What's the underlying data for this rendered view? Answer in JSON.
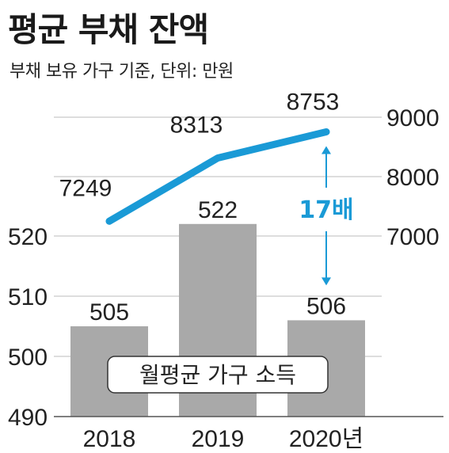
{
  "title": "평균 부채 잔액",
  "subtitle": "부채 보유 가구 기준, 단위: 만원",
  "colors": {
    "bar": "#a9a9a9",
    "line": "#1a9ad6",
    "grid": "#bbbbbb",
    "text": "#222222"
  },
  "chart_data": {
    "type": "bar+line",
    "categories": [
      "2018",
      "2019",
      "2020년"
    ],
    "bars": {
      "name": "월평균 가구 소득",
      "values": [
        505,
        522,
        506
      ],
      "axis": "left",
      "ylim": [
        490,
        525
      ],
      "ticks": [
        490,
        500,
        510,
        520
      ]
    },
    "line": {
      "name": "",
      "values": [
        7249,
        8313,
        8753
      ],
      "axis": "right",
      "ylim": [
        7000,
        9000
      ],
      "ticks": [
        7000,
        8000,
        9000
      ]
    },
    "annotation": "17배",
    "legend_label": "월평균 가구 소득"
  }
}
